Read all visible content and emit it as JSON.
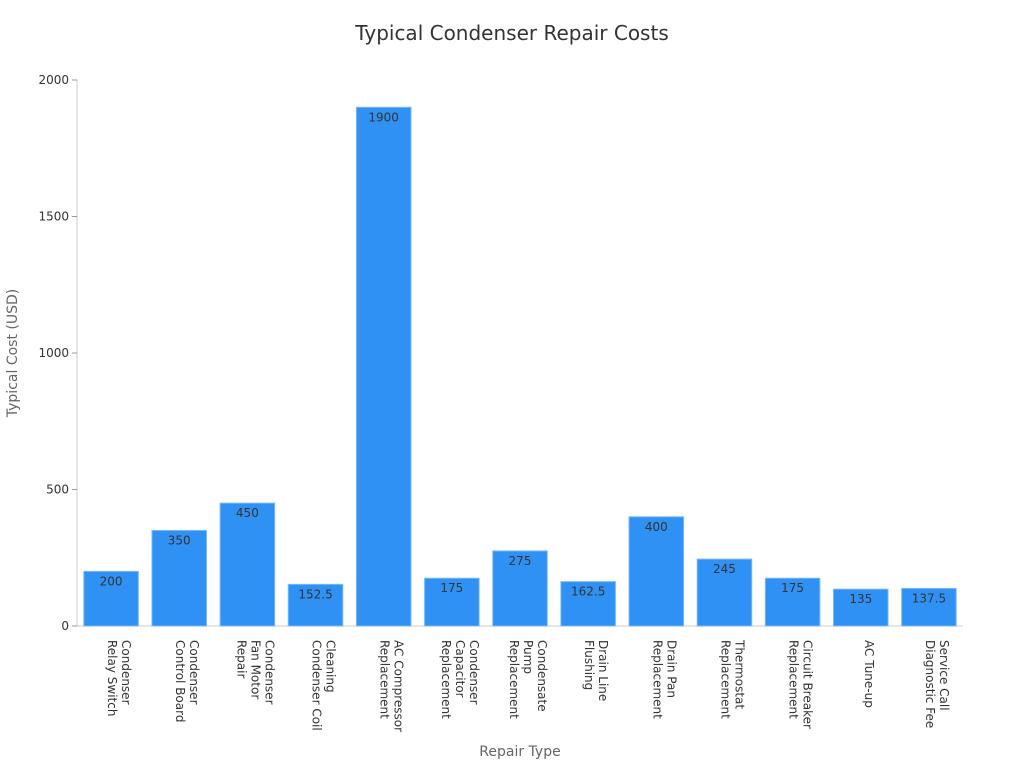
{
  "chart_data": {
    "type": "bar",
    "title": "Typical Condenser Repair Costs",
    "x_label": "Repair Type",
    "y_label": "Typical Cost (USD)",
    "categories": [
      "Condenser\nRelay Switch",
      "Condenser\nControl Board",
      "Condenser\nFan Motor\nRepair",
      "Cleaning\nCondenser Coil",
      "AC Compressor\nReplacement",
      "Condenser\nCapacitor\nReplacement",
      "Condensate\nPump\nReplacement",
      "Drain Line\nFlushing",
      "Drain Pan\nReplacement",
      "Thermostat\nReplacement",
      "Circuit Breaker\nReplacement",
      "AC Tune-up",
      "Service Call\nDiagnostic Fee"
    ],
    "values": [
      200,
      350,
      450,
      152.5,
      1900,
      175,
      275,
      162.5,
      400,
      245,
      175,
      135,
      137.5
    ],
    "color": "#3091f5",
    "ylim": [
      0,
      2000
    ],
    "yticks": [
      0,
      500,
      1000,
      1500,
      2000
    ],
    "grid": false
  }
}
